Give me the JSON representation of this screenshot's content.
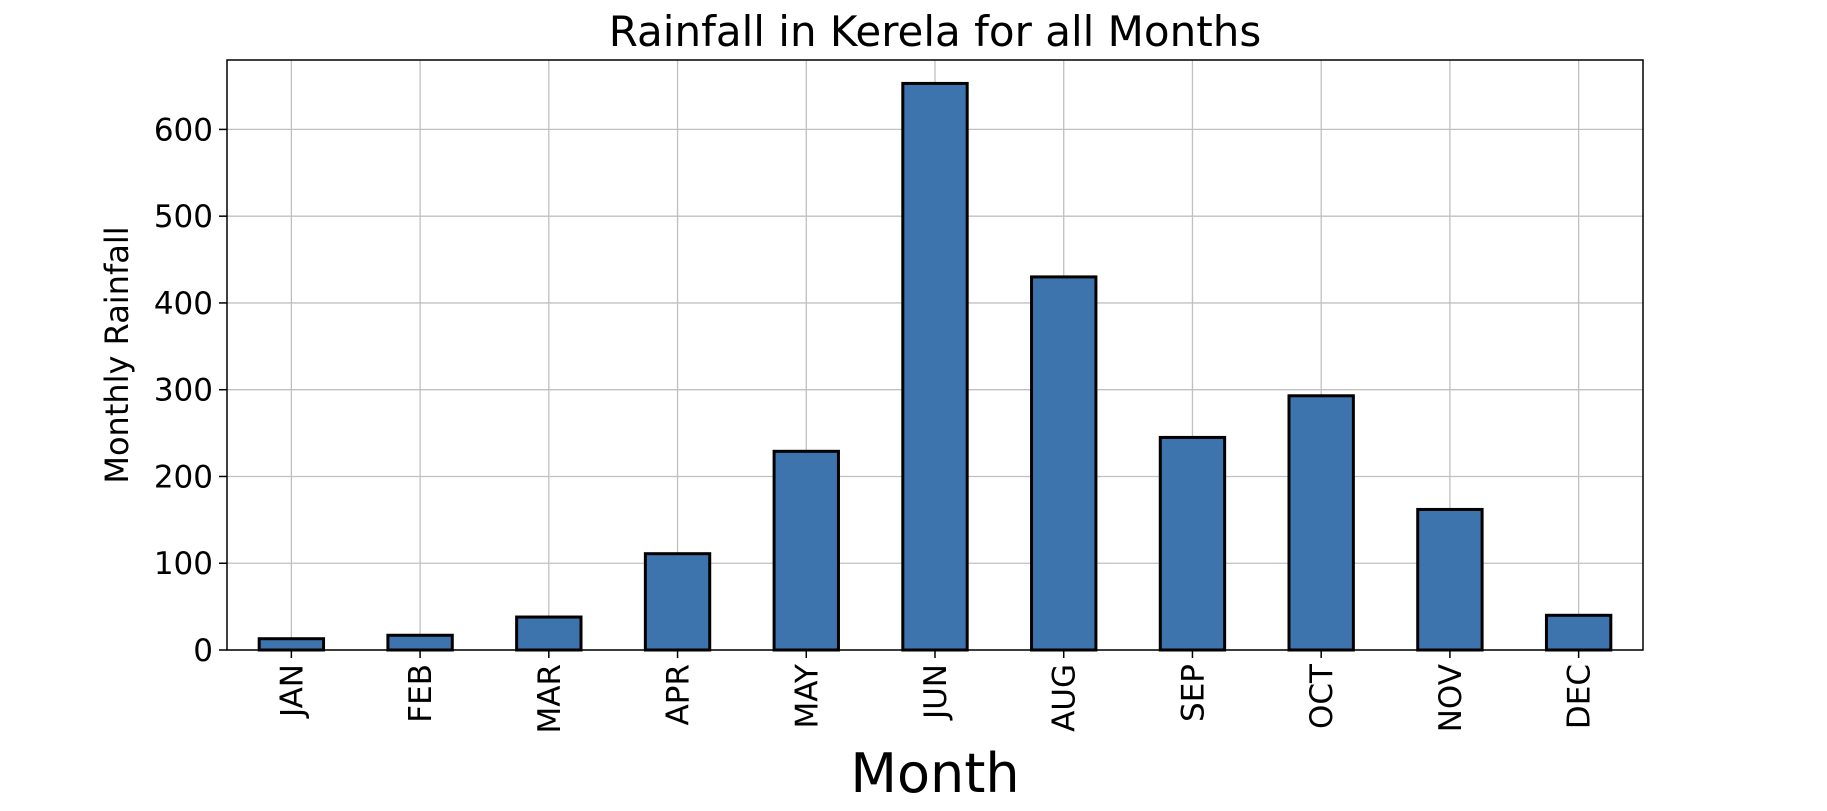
{
  "chart_data": {
    "type": "bar",
    "title": "Rainfall in Kerela for all Months",
    "xlabel": "Month",
    "ylabel": "Monthly Rainfall",
    "categories": [
      "JAN",
      "FEB",
      "MAR",
      "APR",
      "MAY",
      "JUN",
      "AUG",
      "SEP",
      "OCT",
      "NOV",
      "DEC"
    ],
    "values": [
      13,
      17,
      38,
      111,
      229,
      653,
      430,
      245,
      293,
      162,
      40
    ],
    "ylim": [
      0,
      680
    ],
    "yticks": [
      0,
      100,
      200,
      300,
      400,
      500,
      600
    ],
    "grid": true,
    "legend": false,
    "colors": {
      "bar_fill": "#3d74ae",
      "bar_edge": "#000000",
      "grid": "#c0c0c0",
      "axes": "#000000"
    }
  }
}
